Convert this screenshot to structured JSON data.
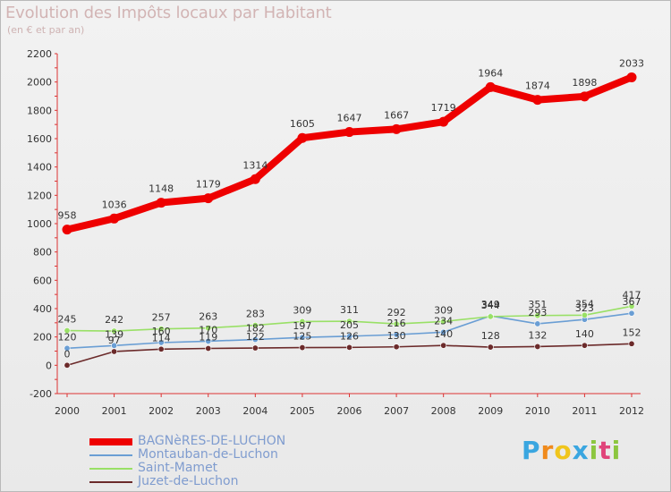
{
  "chart_data": {
    "type": "line",
    "title": "Evolution des Impôts locaux par Habitant",
    "subtitle": "(en € et par an)",
    "x": [
      "2000",
      "2001",
      "2002",
      "2003",
      "2004",
      "2005",
      "2006",
      "2007",
      "2008",
      "2009",
      "2010",
      "2011",
      "2012"
    ],
    "ylim": [
      -200,
      2200
    ],
    "yticks": [
      -200,
      0,
      200,
      400,
      600,
      800,
      1000,
      1200,
      1400,
      1600,
      1800,
      2000,
      2200
    ],
    "grid": false,
    "series": [
      {
        "name": "BAGNèRES-DE-LUCHON",
        "color": "#ee0000",
        "width": 8,
        "values": [
          958,
          1036,
          1148,
          1179,
          1314,
          1605,
          1647,
          1667,
          1719,
          1964,
          1874,
          1898,
          2033
        ],
        "labels": [
          "958",
          "1036",
          "1148",
          "1179",
          "1314",
          "1605",
          "1647",
          "1667",
          "1719",
          "1964",
          "1874",
          "1898",
          "2033"
        ]
      },
      {
        "name": "Montauban-de-Luchon",
        "color": "#6a9ed4",
        "width": 1.6,
        "values": [
          120,
          139,
          160,
          170,
          182,
          197,
          205,
          216,
          234,
          349,
          293,
          323,
          367
        ],
        "labels": [
          "120",
          "139",
          "160",
          "170",
          "182",
          "197",
          "205",
          "216",
          "234",
          "349",
          "293",
          "323",
          "367"
        ]
      },
      {
        "name": "Saint-Mamet",
        "color": "#99e066",
        "width": 1.6,
        "values": [
          245,
          242,
          257,
          263,
          283,
          309,
          311,
          292,
          309,
          344,
          351,
          354,
          417
        ],
        "labels": [
          "245",
          "242",
          "257",
          "263",
          "283",
          "309",
          "311",
          "292",
          "309",
          "344",
          "351",
          "354",
          "417"
        ]
      },
      {
        "name": "Juzet-de-Luchon",
        "color": "#6b2a2a",
        "width": 1.6,
        "values": [
          0,
          97,
          114,
          119,
          122,
          125,
          126,
          130,
          140,
          128,
          132,
          140,
          152
        ],
        "labels": [
          "0",
          "97",
          "114",
          "119",
          "122",
          "125",
          "126",
          "130",
          "140",
          "128",
          "132",
          "140",
          "152"
        ]
      }
    ]
  },
  "legend": [
    {
      "label": "BAGNèRES-DE-LUCHON",
      "color": "#ee0000",
      "width": 8
    },
    {
      "label": "Montauban-de-Luchon",
      "color": "#6a9ed4",
      "width": 2
    },
    {
      "label": "Saint-Mamet",
      "color": "#99e066",
      "width": 2
    },
    {
      "label": "Juzet-de-Luchon",
      "color": "#6b2a2a",
      "width": 2
    }
  ],
  "brand": {
    "letters": [
      "P",
      "r",
      "o",
      "x",
      "i",
      "t",
      "i"
    ],
    "colors": [
      "#3aa6e0",
      "#f08a1c",
      "#f0c51c",
      "#3aa6e0",
      "#8cc63f",
      "#e0447a",
      "#8cc63f"
    ]
  }
}
